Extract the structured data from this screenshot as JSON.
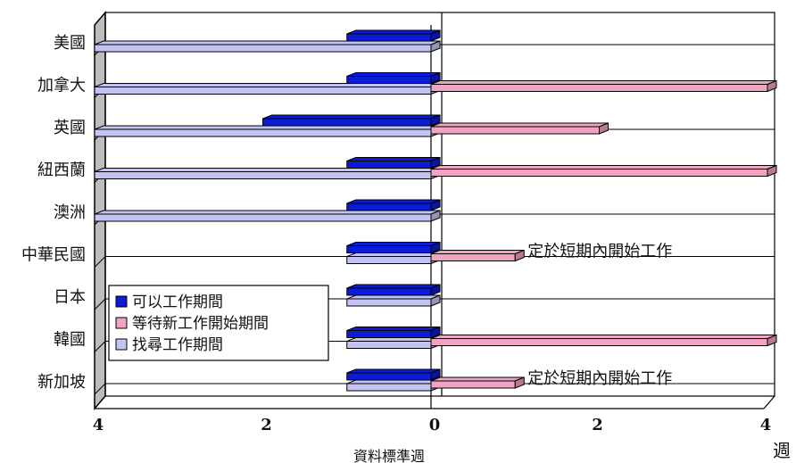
{
  "chart_data": {
    "type": "bar",
    "orientation": "horizontal",
    "categories": [
      "美國",
      "加拿大",
      "英國",
      "紐西蘭",
      "澳洲",
      "中華民國",
      "日本",
      "韓國",
      "新加坡"
    ],
    "series": [
      {
        "name": "可以工作期間",
        "color": "#0a1cd8",
        "values": [
          1,
          1,
          2,
          1,
          1,
          1,
          1,
          1,
          1
        ]
      },
      {
        "name": "等待新工作開始期間",
        "color": "#f0a4c4",
        "values": [
          0,
          4,
          2,
          4,
          0,
          1,
          0,
          4,
          1
        ]
      },
      {
        "name": "找尋工作期間",
        "color": "#c4c4f4",
        "values": [
          4,
          4,
          4,
          4,
          4,
          1,
          1,
          1,
          1
        ]
      }
    ],
    "x_ticks_left": [
      "4",
      "2",
      "0"
    ],
    "x_ticks_right": [
      "2",
      "4"
    ],
    "xlim_left": [
      4,
      0
    ],
    "xlim_right": [
      0,
      4
    ],
    "xlabel": "資料標準週",
    "unit_label": "週",
    "annotations": [
      {
        "category": "中華民國",
        "text": "定於短期內開始工作"
      },
      {
        "category": "新加坡",
        "text": "定於短期內開始工作"
      }
    ],
    "legend_position": "lower-left"
  }
}
